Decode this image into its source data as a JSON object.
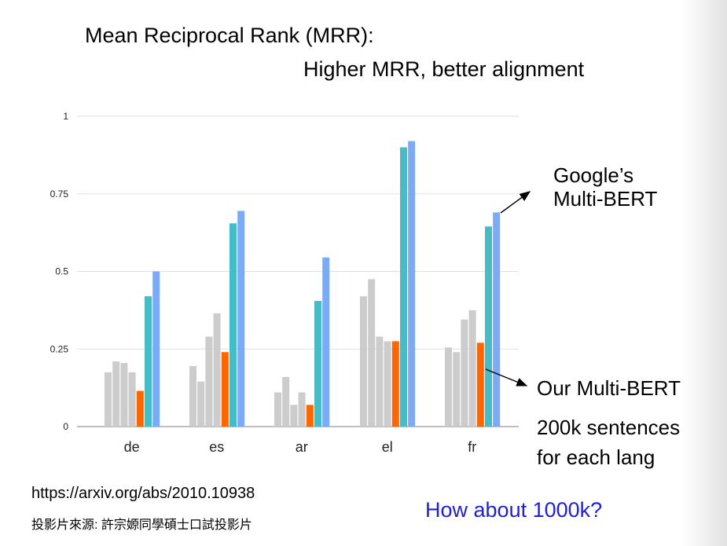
{
  "title_line1": "Mean Reciprocal Rank (MRR):",
  "title_line2": "Higher MRR, better alignment",
  "annotations": {
    "google_line1": "Google’s",
    "google_line2": "Multi-BERT",
    "ours_label": "Our Multi-BERT",
    "ours_data_line1": "200k sentences",
    "ours_data_line2": "for each lang"
  },
  "source_link": "https://arxiv.org/abs/2010.10938",
  "credit": "投影片來源: 許宗嫄同學碩士口試投影片",
  "question": "How about 1000k?",
  "colors": {
    "gray": "#cccccc",
    "ours": "#ff6600",
    "teal": "#46bdc6",
    "google": "#7baaf7",
    "gridline": "#e0e0e0",
    "axis": "#999999",
    "question_text": "#1f1fd6"
  },
  "chart_data": {
    "type": "bar",
    "categories": [
      "de",
      "es",
      "ar",
      "el",
      "fr"
    ],
    "ylim": [
      0,
      1
    ],
    "yticks": [
      0,
      0.25,
      0.5,
      0.75,
      1
    ],
    "ytick_labels": [
      "0",
      "0.25",
      "0.5",
      "0.75",
      "1"
    ],
    "grid": true,
    "legend": "none",
    "series": [
      {
        "color": "gray",
        "values": [
          0.175,
          0.195,
          0.11,
          0.42,
          0.255
        ]
      },
      {
        "color": "gray",
        "values": [
          0.21,
          0.145,
          0.16,
          0.475,
          0.24
        ]
      },
      {
        "color": "gray",
        "values": [
          0.205,
          0.29,
          0.07,
          0.29,
          0.345
        ]
      },
      {
        "color": "gray",
        "values": [
          0.175,
          0.365,
          0.11,
          0.275,
          0.375
        ]
      },
      {
        "color": "ours",
        "values": [
          0.115,
          0.24,
          0.07,
          0.275,
          0.27
        ]
      },
      {
        "color": "teal",
        "values": [
          0.42,
          0.655,
          0.405,
          0.9,
          0.645
        ]
      },
      {
        "color": "google",
        "values": [
          0.5,
          0.695,
          0.545,
          0.92,
          0.69
        ]
      }
    ]
  }
}
